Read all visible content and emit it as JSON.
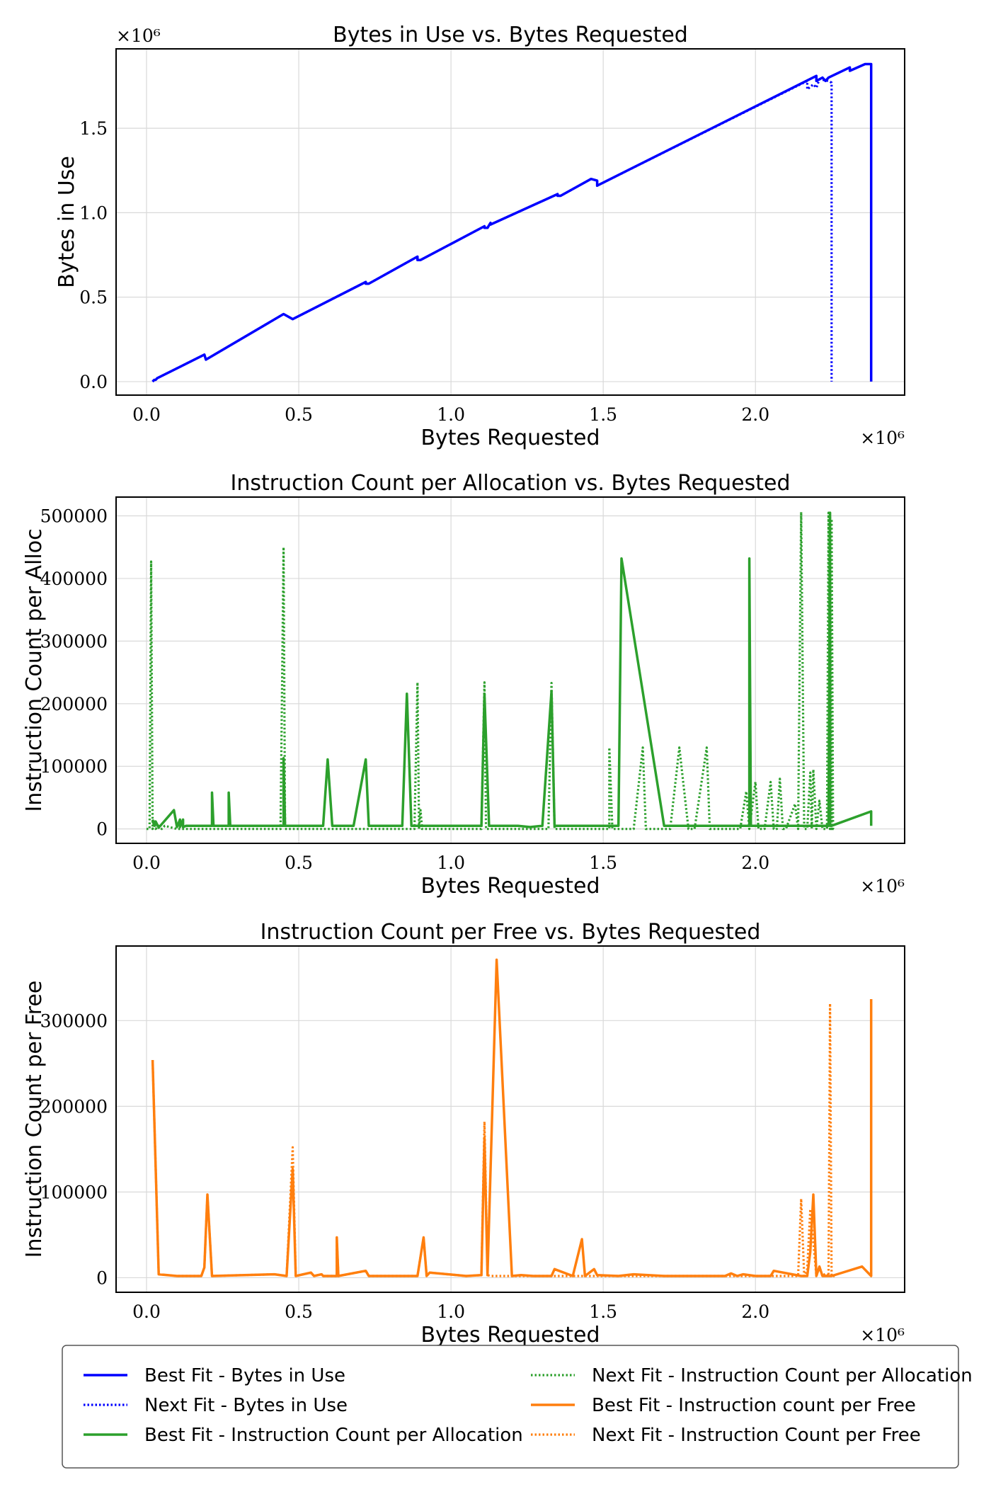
{
  "figure": {
    "background": "#ffffff"
  },
  "chart_data": [
    {
      "type": "line",
      "title": "Bytes in Use vs. Bytes Requested",
      "xlabel": "Bytes Requested",
      "ylabel": "Bytes in Use",
      "x_multiplier": "×10⁶",
      "y_multiplier": "×10⁶",
      "xlim": [
        -0.1,
        2.49
      ],
      "ylim": [
        -0.08,
        1.97
      ],
      "xticks": [
        0.0,
        0.5,
        1.0,
        1.5,
        2.0
      ],
      "xtick_labels": [
        "0.0",
        "0.5",
        "1.0",
        "1.5",
        "2.0"
      ],
      "yticks": [
        0.0,
        0.5,
        1.0,
        1.5
      ],
      "ytick_labels": [
        "0.0",
        "0.5",
        "1.0",
        "1.5"
      ],
      "grid": true,
      "series": [
        {
          "name": "Best Fit - Bytes in Use",
          "color": "#0000ff",
          "style": "solid",
          "x": [
            0.02,
            0.025,
            0.03,
            0.035,
            0.19,
            0.195,
            0.45,
            0.48,
            0.48,
            0.72,
            0.72,
            0.73,
            0.89,
            0.89,
            0.9,
            1.11,
            1.11,
            1.12,
            1.13,
            1.13,
            1.35,
            1.35,
            1.36,
            1.46,
            1.48,
            1.48,
            2.2,
            2.2,
            2.22,
            2.23,
            2.24,
            2.31,
            2.31,
            2.36,
            2.38,
            2.38
          ],
          "y": [
            0.0,
            0.01,
            0.01,
            0.02,
            0.16,
            0.13,
            0.4,
            0.37,
            0.37,
            0.59,
            0.58,
            0.58,
            0.74,
            0.72,
            0.72,
            0.92,
            0.91,
            0.91,
            0.94,
            0.93,
            1.11,
            1.1,
            1.1,
            1.2,
            1.19,
            1.16,
            1.81,
            1.78,
            1.8,
            1.78,
            1.8,
            1.86,
            1.84,
            1.88,
            1.88,
            0.0
          ]
        },
        {
          "name": "Next Fit - Bytes in Use",
          "color": "#0000ff",
          "style": "dotted",
          "x": [
            0.02,
            0.025,
            0.03,
            0.035,
            0.19,
            0.195,
            0.45,
            0.48,
            0.48,
            0.72,
            0.72,
            0.73,
            0.89,
            0.89,
            0.9,
            1.11,
            1.11,
            1.12,
            1.13,
            1.13,
            1.35,
            1.35,
            1.36,
            1.46,
            1.48,
            1.48,
            2.17,
            2.17,
            2.19,
            2.2,
            2.21,
            2.24,
            2.25,
            2.25
          ],
          "y": [
            0.0,
            0.01,
            0.01,
            0.02,
            0.16,
            0.13,
            0.4,
            0.37,
            0.37,
            0.59,
            0.58,
            0.58,
            0.74,
            0.72,
            0.72,
            0.92,
            0.91,
            0.91,
            0.94,
            0.93,
            1.11,
            1.1,
            1.1,
            1.2,
            1.19,
            1.16,
            1.78,
            1.73,
            1.76,
            1.74,
            1.79,
            1.78,
            1.77,
            0.0
          ]
        }
      ]
    },
    {
      "type": "line",
      "title": "Instruction Count per Allocation vs. Bytes Requested",
      "xlabel": "Bytes Requested",
      "ylabel": "Instruction Count per Alloc",
      "x_multiplier": "×10⁶",
      "xlim": [
        -0.1,
        2.49
      ],
      "ylim": [
        -23000,
        530000
      ],
      "xticks": [
        0.0,
        0.5,
        1.0,
        1.5,
        2.0
      ],
      "xtick_labels": [
        "0.0",
        "0.5",
        "1.0",
        "1.5",
        "2.0"
      ],
      "yticks": [
        0,
        100000,
        200000,
        300000,
        400000,
        500000
      ],
      "ytick_labels": [
        "0",
        "100000",
        "200000",
        "300000",
        "400000",
        "500000"
      ],
      "grid": true,
      "series": [
        {
          "name": "Best Fit - Instruction Count per Allocation",
          "color": "#2ca02c",
          "style": "solid",
          "x": [
            0.02,
            0.025,
            0.03,
            0.04,
            0.09,
            0.1,
            0.11,
            0.11,
            0.12,
            0.12,
            0.13,
            0.2,
            0.215,
            0.215,
            0.22,
            0.27,
            0.27,
            0.275,
            0.44,
            0.45,
            0.45,
            0.455,
            0.46,
            0.58,
            0.595,
            0.61,
            0.68,
            0.72,
            0.73,
            0.84,
            0.855,
            0.87,
            0.89,
            1.1,
            1.11,
            1.125,
            1.22,
            1.26,
            1.3,
            1.33,
            1.34,
            1.52,
            1.55,
            1.56,
            1.7,
            1.98,
            1.98,
            1.985,
            2.0,
            2.24,
            2.245,
            2.245,
            2.25,
            2.25,
            2.38,
            2.38
          ],
          "y": [
            15000,
            5000,
            12000,
            2000,
            30000,
            3000,
            15000,
            3000,
            15000,
            3000,
            5000,
            5000,
            5000,
            58000,
            5000,
            5000,
            58000,
            5000,
            5000,
            5000,
            113000,
            5000,
            5000,
            5000,
            111000,
            5000,
            5000,
            111000,
            5000,
            5000,
            216000,
            5000,
            5000,
            5000,
            216000,
            5000,
            5000,
            3000,
            5000,
            220000,
            5000,
            5000,
            5000,
            432000,
            5000,
            5000,
            432000,
            5000,
            5000,
            5000,
            505000,
            5000,
            5000,
            5000,
            28000,
            5000
          ]
        },
        {
          "name": "Next Fit - Instruction Count per Allocation",
          "color": "#2ca02c",
          "style": "dotted",
          "x": [
            0.0,
            0.01,
            0.015,
            0.02,
            0.025,
            0.03,
            0.04,
            0.05,
            0.06,
            0.1,
            0.44,
            0.45,
            0.455,
            0.46,
            0.88,
            0.89,
            0.895,
            0.9,
            0.905,
            1.1,
            1.11,
            1.115,
            1.12,
            1.32,
            1.33,
            1.34,
            1.52,
            1.52,
            1.53,
            1.53,
            1.6,
            1.63,
            1.64,
            1.72,
            1.75,
            1.78,
            1.8,
            1.84,
            1.85,
            1.95,
            1.97,
            1.98,
            2.0,
            2.01,
            2.03,
            2.05,
            2.06,
            2.07,
            2.08,
            2.09,
            2.1,
            2.13,
            2.14,
            2.15,
            2.16,
            2.17,
            2.18,
            2.185,
            2.19,
            2.2,
            2.21,
            2.22,
            2.225,
            2.235,
            2.24,
            2.245,
            2.245,
            2.25,
            2.25,
            2.255,
            2.26
          ],
          "y": [
            0,
            0,
            427000,
            0,
            12000,
            0,
            5000,
            0,
            5000,
            0,
            0,
            450000,
            0,
            0,
            0,
            234000,
            0,
            30000,
            0,
            0,
            234000,
            0,
            0,
            0,
            233000,
            0,
            0,
            130000,
            0,
            0,
            0,
            130000,
            0,
            0,
            130000,
            0,
            0,
            130000,
            0,
            0,
            60000,
            0,
            75000,
            0,
            0,
            75000,
            0,
            0,
            80000,
            0,
            0,
            40000,
            0,
            506000,
            0,
            0,
            90000,
            0,
            95000,
            0,
            45000,
            0,
            0,
            0,
            505000,
            0,
            500000,
            0,
            495000,
            0,
            0
          ]
        }
      ]
    },
    {
      "type": "line",
      "title": "Instruction Count per Free vs. Bytes Requested",
      "xlabel": "Bytes Requested",
      "ylabel": "Instruction Count per Free",
      "x_multiplier": "×10⁶",
      "xlim": [
        -0.1,
        2.49
      ],
      "ylim": [
        -17000,
        387000
      ],
      "xticks": [
        0.0,
        0.5,
        1.0,
        1.5,
        2.0
      ],
      "xtick_labels": [
        "0.0",
        "0.5",
        "1.0",
        "1.5",
        "2.0"
      ],
      "yticks": [
        0,
        100000,
        200000,
        300000
      ],
      "ytick_labels": [
        "0",
        "100000",
        "200000",
        "300000"
      ],
      "grid": true,
      "series": [
        {
          "name": "Best Fit - Instruction count per Free",
          "color": "#ff7f0e",
          "style": "solid",
          "x": [
            0.02,
            0.04,
            0.1,
            0.18,
            0.19,
            0.2,
            0.215,
            0.42,
            0.46,
            0.48,
            0.49,
            0.54,
            0.55,
            0.575,
            0.58,
            0.625,
            0.625,
            0.63,
            0.72,
            0.73,
            0.89,
            0.91,
            0.92,
            0.93,
            1.05,
            1.1,
            1.11,
            1.12,
            1.15,
            1.2,
            1.23,
            1.27,
            1.33,
            1.34,
            1.4,
            1.43,
            1.44,
            1.47,
            1.48,
            1.55,
            1.6,
            1.7,
            1.9,
            1.92,
            1.94,
            1.96,
            2.0,
            2.05,
            2.06,
            2.15,
            2.17,
            2.18,
            2.19,
            2.2,
            2.21,
            2.22,
            2.24,
            2.25,
            2.25,
            2.35,
            2.38,
            2.38
          ],
          "y": [
            254000,
            4000,
            2000,
            2000,
            12000,
            97000,
            2000,
            4000,
            2000,
            127000,
            2000,
            6000,
            2000,
            4000,
            2000,
            2000,
            47000,
            2000,
            8000,
            2000,
            2000,
            47000,
            2000,
            6000,
            2000,
            3000,
            163000,
            3000,
            371000,
            2000,
            3000,
            2000,
            2000,
            10000,
            2000,
            45000,
            2000,
            10000,
            3000,
            2000,
            4000,
            2000,
            2000,
            5000,
            2000,
            4000,
            2000,
            2000,
            8000,
            2000,
            2000,
            30000,
            97000,
            2000,
            13000,
            2000,
            2000,
            2000,
            2000,
            13000,
            2000,
            325000
          ]
        },
        {
          "name": "Next Fit - Instruction Count per Free",
          "color": "#ff7f0e",
          "style": "dotted",
          "x": [
            0.02,
            0.04,
            0.1,
            0.18,
            0.19,
            0.2,
            0.215,
            0.42,
            0.46,
            0.48,
            0.49,
            0.54,
            0.55,
            0.575,
            0.58,
            0.625,
            0.625,
            0.63,
            0.72,
            0.73,
            0.89,
            0.91,
            0.92,
            0.93,
            1.05,
            1.1,
            1.11,
            1.12,
            1.13,
            1.6,
            1.7,
            2.0,
            2.14,
            2.15,
            2.16,
            2.17,
            2.18,
            2.2,
            2.21,
            2.22,
            2.23,
            2.24,
            2.245,
            2.25,
            2.26
          ],
          "y": [
            254000,
            4000,
            2000,
            2000,
            12000,
            97000,
            2000,
            4000,
            2000,
            152000,
            2000,
            6000,
            2000,
            4000,
            2000,
            2000,
            47000,
            2000,
            8000,
            2000,
            2000,
            47000,
            2000,
            6000,
            2000,
            3000,
            182000,
            3000,
            2000,
            2000,
            2000,
            2000,
            2000,
            92000,
            2000,
            10000,
            80000,
            2000,
            12000,
            2000,
            5000,
            2000,
            320000,
            2000,
            2000
          ]
        }
      ]
    }
  ],
  "legend": {
    "entries": [
      {
        "label": "Best Fit - Bytes in Use",
        "color": "#0000ff",
        "style": "solid"
      },
      {
        "label": "Next Fit - Bytes in Use",
        "color": "#0000ff",
        "style": "dotted"
      },
      {
        "label": "Best Fit - Instruction Count per Allocation",
        "color": "#2ca02c",
        "style": "solid"
      },
      {
        "label": "Next Fit - Instruction Count per Allocation",
        "color": "#2ca02c",
        "style": "dotted"
      },
      {
        "label": "Best Fit - Instruction count per Free",
        "color": "#ff7f0e",
        "style": "solid"
      },
      {
        "label": "Next Fit - Instruction Count per Free",
        "color": "#ff7f0e",
        "style": "dotted"
      }
    ]
  }
}
